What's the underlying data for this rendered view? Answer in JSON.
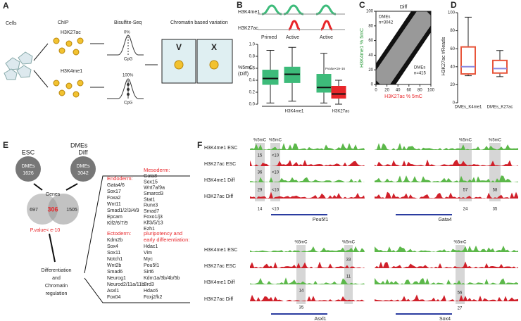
{
  "panels": {
    "A": {
      "label": "A",
      "cells": "Cells",
      "chip": "ChIP",
      "mark1": "H3K27ac",
      "mark2": "H3K4me1",
      "bisulfite": "Bisulfite-Seq",
      "pct0": "0%",
      "pct100": "100%",
      "cpg": "CpG",
      "variation": "Chromatin based variation",
      "v": "V",
      "x": "X"
    },
    "B": {
      "label": "B",
      "track1": "H3K4me1",
      "track2": "H3K27ac",
      "states": [
        "Primed",
        "Active",
        "Active"
      ]
    },
    "C": {
      "label": "C"
    },
    "D": {
      "label": "D"
    },
    "E": {
      "label": "E",
      "title": "DMEs",
      "esc": "ESC",
      "diff": "Diff",
      "dmes": "DMEs",
      "esc_n": 1626,
      "diff_n": 3042,
      "genes": "Genes",
      "venn": [
        697,
        306,
        1505
      ],
      "pvalue": "P.value< e-10",
      "outcome": [
        "Differentiation",
        "and",
        "Chromatin",
        "regulation"
      ],
      "endoderm": {
        "title": "Endoderm:",
        "genes": [
          "Gata4/6",
          "Sox17",
          "Foxa2",
          "Wnt11",
          "Smad1/2/3/4/9",
          "Epcam",
          "Klf2/6/7/9"
        ]
      },
      "mesoderm": {
        "title": "Mesoderm:",
        "genes": [
          "Gata3",
          "Sox15",
          "Wnt7a/9a",
          "Smarcd3",
          "Stat1",
          "Runx3",
          "Smad7",
          "Foxo1/j3",
          "Klf3/5/13",
          "Ezh1"
        ]
      },
      "ectoderm": {
        "title": "Ectoderm:",
        "genes": [
          "Kdm2b",
          "Sox4",
          "Sox11",
          "Notch1",
          "Wnt2b",
          "Smad6",
          "Neurog1",
          "Neurod2/11a/11b",
          "Asxl1",
          "Fox04"
        ]
      },
      "pluripotency": {
        "title": [
          "pluripotency and",
          "early differentiation:"
        ],
        "genes": [
          "Hdac1",
          "Vim",
          "Myc",
          "Pou5f1",
          "Sirt6",
          "Kdm1a/3b/4b/5b",
          "Brd3",
          "Hdac6",
          "Foxj2/k2"
        ]
      }
    },
    "F": {
      "label": "F",
      "tracks": [
        "H3K4me1 ESC",
        "H3K27ac ESC",
        "H3K4me1 Diff",
        "H3K27ac Diff"
      ],
      "mark": "%5mC",
      "blocks": [
        {
          "gene": "Pou5f1",
          "values": [
            "15",
            "<10",
            "36",
            "<10",
            "29",
            "<10",
            "14",
            "<10"
          ]
        },
        {
          "gene": "Gata4",
          "values": [
            "57",
            "58",
            "24",
            "35"
          ]
        },
        {
          "gene": "Asxl1",
          "values": [
            "33",
            "11",
            "14",
            "35"
          ]
        },
        {
          "gene": "Sox4",
          "values": [
            "56",
            "27"
          ]
        }
      ]
    }
  },
  "chart_data": [
    {
      "type": "box",
      "ylabel": [
        "%5mC",
        "(Diff)"
      ],
      "ylim": [
        0,
        1
      ],
      "yticks": [
        {
          "value": 0,
          "label": "0.0"
        },
        0.2,
        0.4,
        0.6,
        0.8,
        {
          "value": 1,
          "label": "1.0"
        }
      ],
      "groups": [
        "H3K4me1",
        "H3K27ac"
      ],
      "annotation": "Pvalue<2e-16",
      "boxes": [
        {
          "color": "#3dbb7a",
          "whislo": 0.02,
          "q1": 0.33,
          "med": 0.43,
          "q3": 0.57,
          "whishi": 0.9
        },
        {
          "color": "#3dbb7a",
          "whislo": 0.05,
          "q1": 0.36,
          "med": 0.5,
          "q3": 0.62,
          "whishi": 0.95
        },
        {
          "color": "#3dbb7a",
          "whislo": 0.02,
          "q1": 0.2,
          "med": 0.28,
          "q3": 0.5,
          "whishi": 0.85
        },
        {
          "color": "#e8262a",
          "whislo": 0,
          "q1": 0.1,
          "med": 0.17,
          "q3": 0.3,
          "whishi": 0.4
        }
      ]
    },
    {
      "type": "scatter",
      "title": "Diff",
      "xlabel": "H3K27ac % 5mC",
      "ylabel": "H3K4me1 % 5mC",
      "xlim": [
        0,
        100
      ],
      "ylim": [
        0,
        100
      ],
      "xticks": [
        0,
        20,
        40,
        60,
        80,
        100
      ],
      "yticks": [
        0,
        20,
        40,
        60,
        80,
        100
      ],
      "annotations": [
        [
          "DMEs",
          "n=3042"
        ],
        [
          "DMEs",
          "n=415"
        ]
      ]
    },
    {
      "type": "box",
      "ylabel": "H3K27ac #Reads",
      "ylim": [
        0,
        100
      ],
      "yticks": [
        0,
        20,
        40,
        60,
        80,
        100
      ],
      "categories": [
        "DMEs_K4me1",
        "DMEs_K27ac"
      ],
      "boxes": [
        {
          "color": "#e8553a",
          "whislo": 30,
          "q1": 32,
          "med": 40,
          "q3": 62,
          "whishi": 95
        },
        {
          "color": "#e8553a",
          "whislo": 29,
          "q1": 33,
          "med": 38,
          "q3": 47,
          "whishi": 58
        }
      ]
    }
  ]
}
